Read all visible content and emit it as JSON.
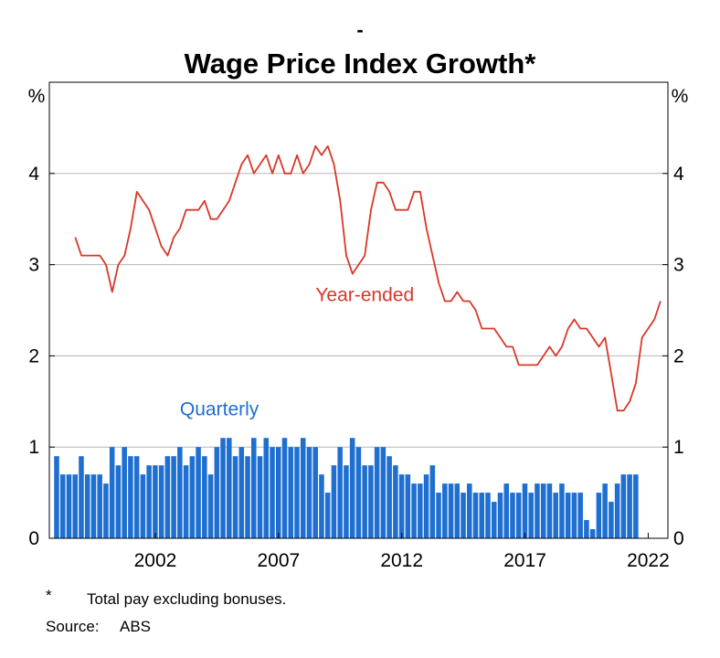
{
  "page": {
    "dash": "-",
    "footnote_marker": "*",
    "footnote_text": "Total pay excluding bonuses.",
    "source_label": "Source:",
    "source_value": "ABS"
  },
  "chart_data": {
    "type": "bar+line",
    "title": "Wage Price Index Growth*",
    "unit_left": "%",
    "unit_right": "%",
    "ylim": [
      0,
      5
    ],
    "yticks": [
      0,
      1,
      2,
      3,
      4
    ],
    "xlim": [
      1997.7,
      2022.8
    ],
    "xticks": [
      2002,
      2007,
      2012,
      2017,
      2022
    ],
    "grid": true,
    "bar_color": "#1f6fd1",
    "line_color": "#d9372a",
    "series": [
      {
        "name": "Quarterly",
        "kind": "bar",
        "label_pos": [
          2004.6,
          1.35
        ],
        "x_start": 1998.0,
        "x_step": 0.25,
        "values": [
          0.9,
          0.7,
          0.7,
          0.7,
          0.9,
          0.7,
          0.7,
          0.7,
          0.6,
          1.0,
          0.8,
          1.0,
          0.9,
          0.9,
          0.7,
          0.8,
          0.8,
          0.8,
          0.9,
          0.9,
          1.0,
          0.8,
          0.9,
          1.0,
          0.9,
          0.7,
          1.0,
          1.1,
          1.1,
          0.9,
          1.0,
          0.9,
          1.1,
          0.9,
          1.1,
          1.0,
          1.0,
          1.1,
          1.0,
          1.0,
          1.1,
          1.0,
          1.0,
          0.7,
          0.5,
          0.8,
          1.0,
          0.8,
          1.1,
          1.0,
          0.8,
          0.8,
          1.0,
          1.0,
          0.9,
          0.8,
          0.7,
          0.7,
          0.6,
          0.6,
          0.7,
          0.8,
          0.5,
          0.6,
          0.6,
          0.6,
          0.5,
          0.6,
          0.5,
          0.5,
          0.5,
          0.4,
          0.5,
          0.6,
          0.5,
          0.5,
          0.6,
          0.5,
          0.6,
          0.6,
          0.6,
          0.5,
          0.6,
          0.5,
          0.5,
          0.5,
          0.2,
          0.1,
          0.5,
          0.6,
          0.4,
          0.6,
          0.7,
          0.7,
          0.7
        ]
      },
      {
        "name": "Year-ended",
        "kind": "line",
        "label_pos": [
          2010.5,
          2.6
        ],
        "x_start": 1998.75,
        "x_step": 0.25,
        "values": [
          3.3,
          3.1,
          3.1,
          3.1,
          3.1,
          3.0,
          2.7,
          3.0,
          3.1,
          3.4,
          3.8,
          3.7,
          3.6,
          3.4,
          3.2,
          3.1,
          3.3,
          3.4,
          3.6,
          3.6,
          3.6,
          3.7,
          3.5,
          3.5,
          3.6,
          3.7,
          3.9,
          4.1,
          4.2,
          4.0,
          4.1,
          4.2,
          4.0,
          4.2,
          4.0,
          4.0,
          4.2,
          4.0,
          4.1,
          4.3,
          4.2,
          4.3,
          4.1,
          3.7,
          3.1,
          2.9,
          3.0,
          3.1,
          3.6,
          3.9,
          3.9,
          3.8,
          3.6,
          3.6,
          3.6,
          3.8,
          3.8,
          3.4,
          3.1,
          2.8,
          2.6,
          2.6,
          2.7,
          2.6,
          2.6,
          2.5,
          2.3,
          2.3,
          2.3,
          2.2,
          2.1,
          2.1,
          1.9,
          1.9,
          1.9,
          1.9,
          2.0,
          2.1,
          2.0,
          2.1,
          2.3,
          2.4,
          2.3,
          2.3,
          2.2,
          2.1,
          2.2,
          1.8,
          1.4,
          1.4,
          1.5,
          1.7,
          2.2,
          2.3,
          2.4,
          2.6
        ]
      }
    ]
  }
}
